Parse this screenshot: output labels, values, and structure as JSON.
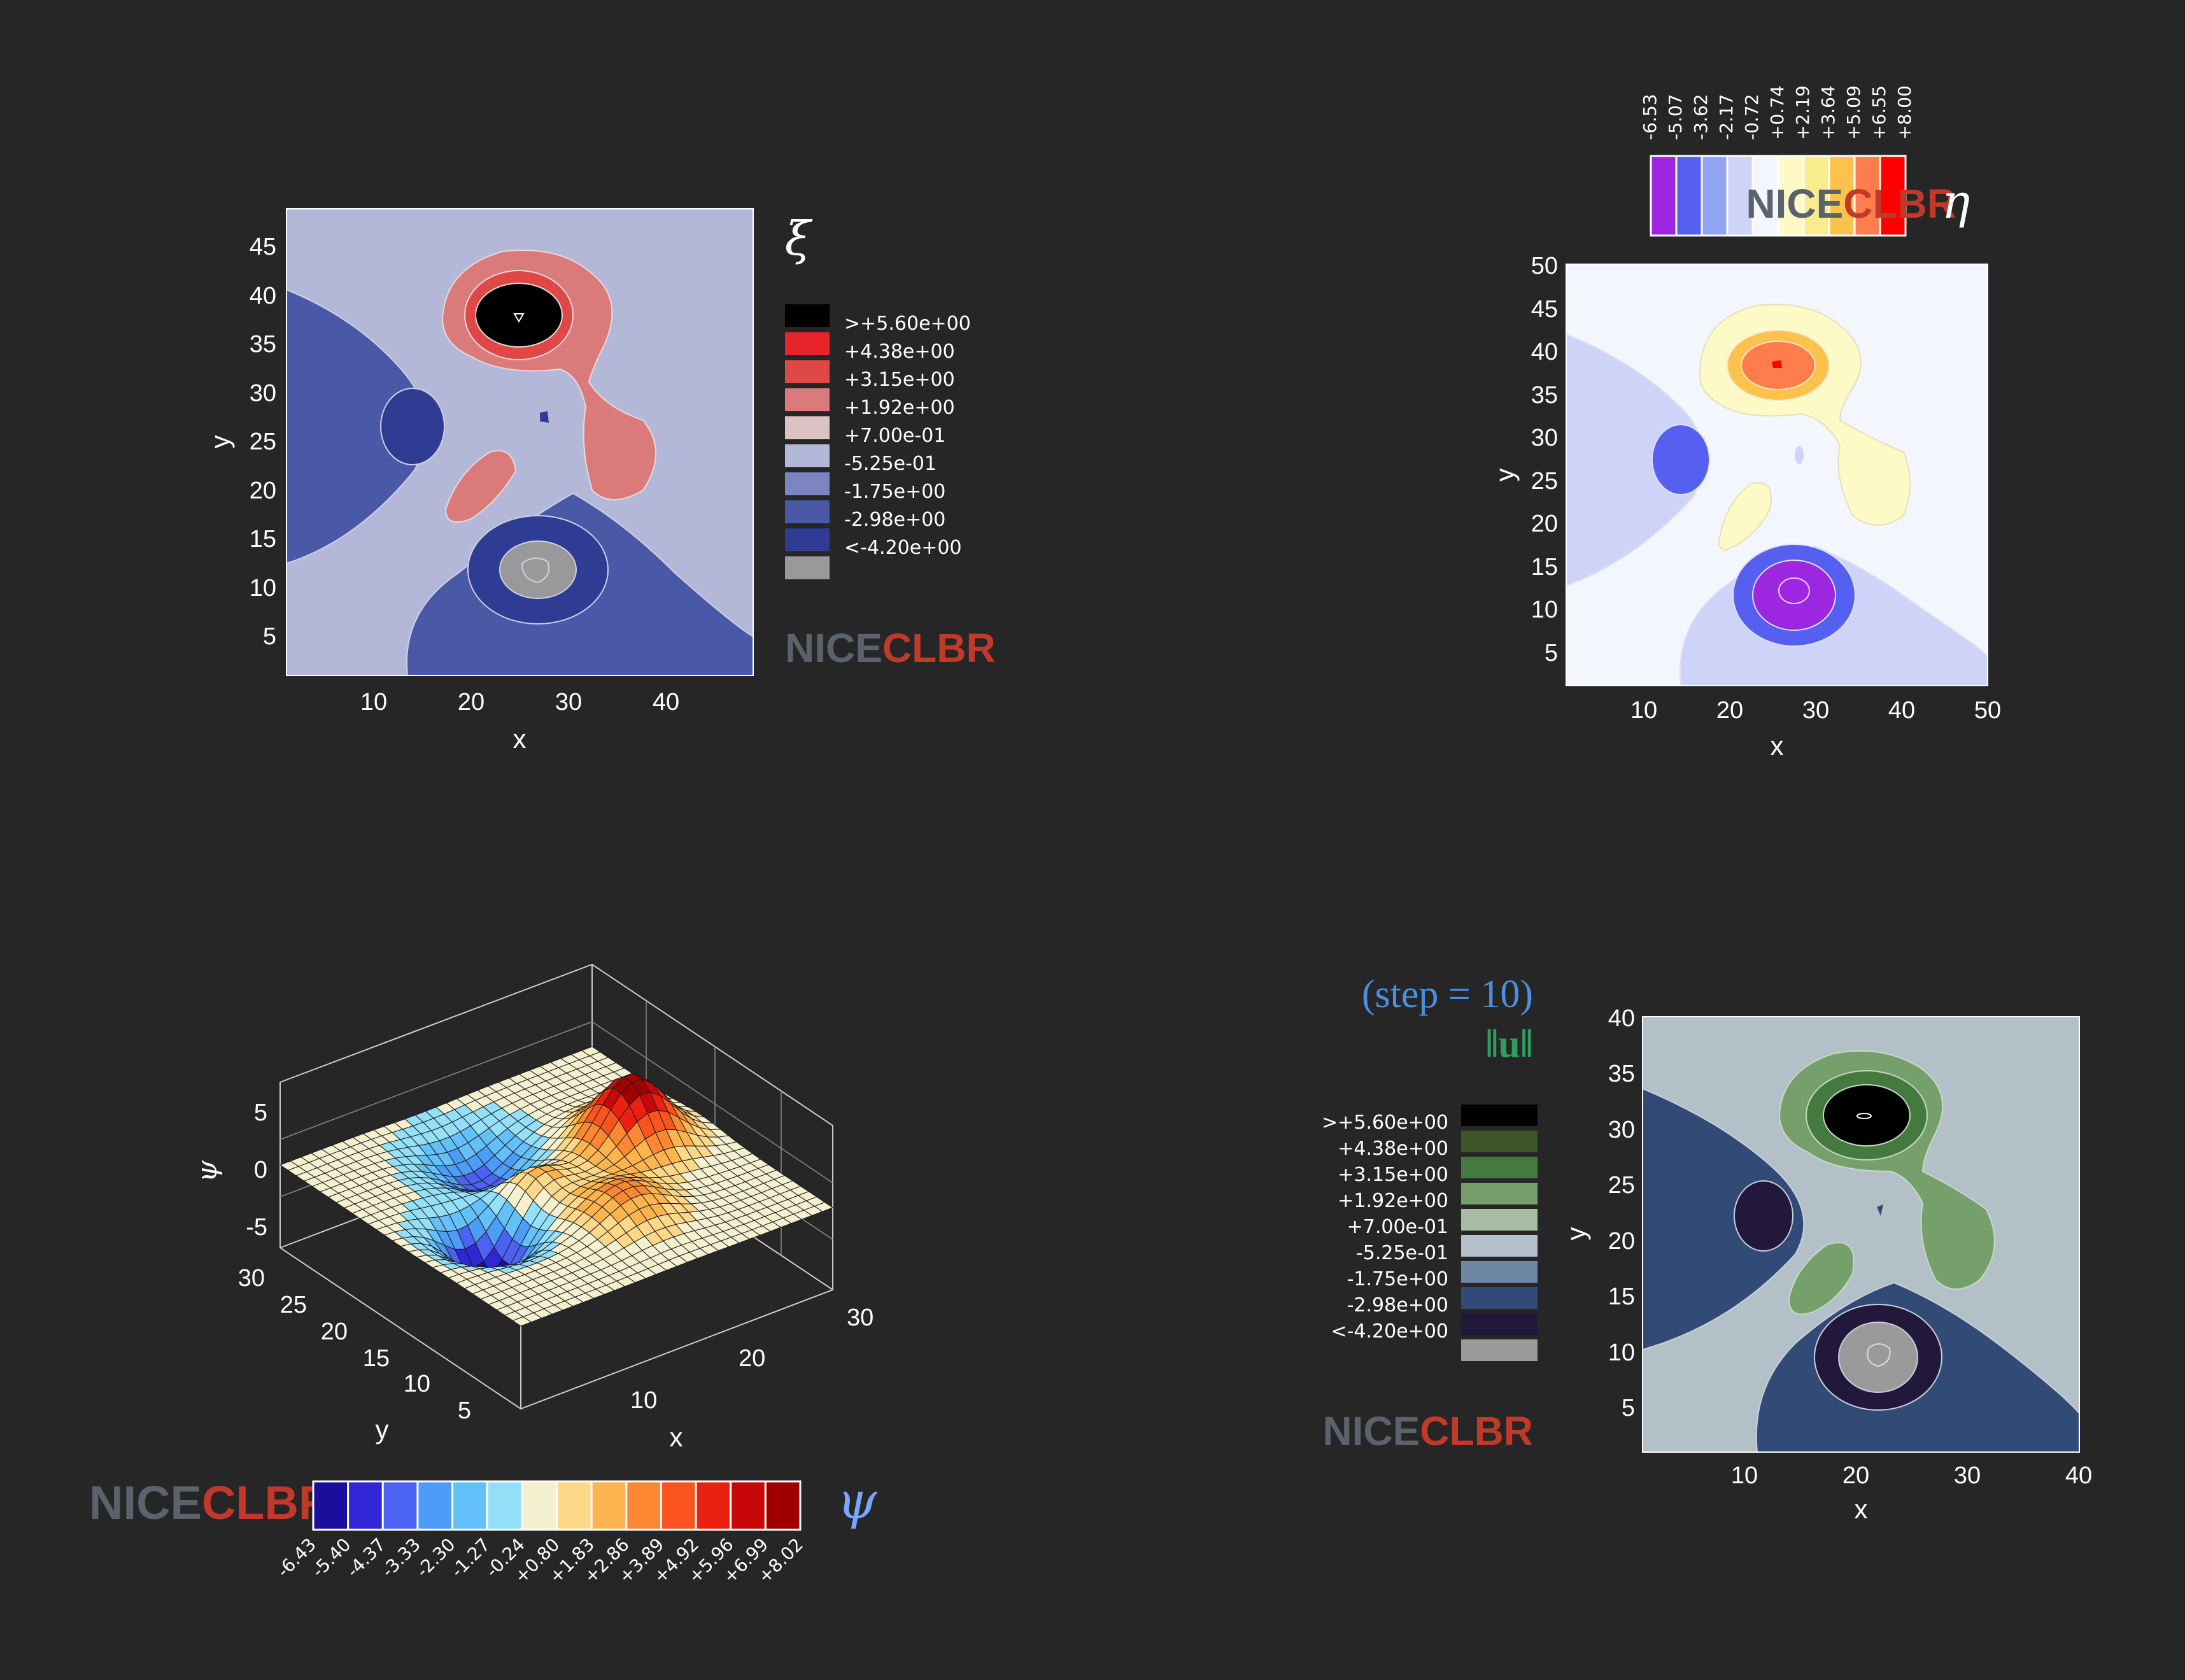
{
  "colors": {
    "background": "#262626",
    "brand_grey": "#5a626b",
    "brand_red": "#c0392b",
    "step_blue": "#4a90e2",
    "norm_green": "#2e9e5e",
    "psi_blue": "#7aa6ff"
  },
  "brand": {
    "part1": "NICE",
    "part2": "CLBR"
  },
  "panels": {
    "xi": {
      "symbol": "ξ",
      "xlabel": "x",
      "ylabel": "y",
      "xticks": [
        "10",
        "20",
        "30",
        "40"
      ],
      "yticks": [
        "5",
        "10",
        "15",
        "20",
        "25",
        "30",
        "35",
        "40",
        "45"
      ],
      "legend": [
        {
          "label": ">+5.60e+00",
          "color": "#000000"
        },
        {
          "label": "+4.38e+00",
          "color": "#e8242a"
        },
        {
          "label": "+3.15e+00",
          "color": "#e04848"
        },
        {
          "label": "+1.92e+00",
          "color": "#db7a7a"
        },
        {
          "label": "+7.00e-01",
          "color": "#dcc2c2"
        },
        {
          "label": "-5.25e-01",
          "color": "#b4b8d8"
        },
        {
          "label": "-1.75e+00",
          "color": "#7c84c2"
        },
        {
          "label": "-2.98e+00",
          "color": "#4a58a8"
        },
        {
          "label": "<-4.20e+00",
          "color": "#2e3c94"
        },
        {
          "label": "",
          "color": "#999999"
        }
      ]
    },
    "eta": {
      "symbol": "η",
      "xlabel": "x",
      "ylabel": "y",
      "xticks": [
        "10",
        "20",
        "30",
        "40",
        "50"
      ],
      "yticks": [
        "5",
        "10",
        "15",
        "20",
        "25",
        "30",
        "35",
        "40",
        "45",
        "50"
      ],
      "colorbar": {
        "ticks": [
          "-6.53",
          "-5.07",
          "-3.62",
          "-2.17",
          "-0.72",
          "+0.74",
          "+2.19",
          "+3.64",
          "+5.09",
          "+6.55",
          "+8.00"
        ],
        "colors": [
          "#9d27e0",
          "#5560f0",
          "#93a4f4",
          "#cdd4f8",
          "#f4f6fe",
          "#fefac8",
          "#f8ec8c",
          "#fcc24c",
          "#ff7c4c",
          "#ff0000"
        ]
      }
    },
    "psi": {
      "symbol": "ψ",
      "xlabel": "x",
      "ylabel": "y",
      "zlabel": "ψ",
      "xticks": [
        "10",
        "20",
        "30"
      ],
      "yticks": [
        "5",
        "10",
        "15",
        "20",
        "25",
        "30"
      ],
      "zticks": [
        "5",
        "0",
        "-5"
      ],
      "colorbar": {
        "ticks": [
          "-6.43",
          "-5.40",
          "-4.37",
          "-3.33",
          "-2.30",
          "-1.27",
          "-0.24",
          "+0.80",
          "+1.83",
          "+2.86",
          "+3.89",
          "+4.92",
          "+5.96",
          "+6.99",
          "+8.02"
        ],
        "colors": [
          "#1a0f9c",
          "#3026d8",
          "#4c62f4",
          "#4c9cf8",
          "#64c0f8",
          "#94e0f8",
          "#f4f0d0",
          "#fcd888",
          "#fcb450",
          "#fc8834",
          "#fc5420",
          "#ec2010",
          "#c80808",
          "#a00000"
        ]
      }
    },
    "norm": {
      "step_text": "(step = 10)",
      "symbol": "‖u‖",
      "xlabel": "x",
      "ylabel": "y",
      "xticks": [
        "10",
        "20",
        "30",
        "40"
      ],
      "yticks": [
        "5",
        "10",
        "15",
        "20",
        "25",
        "30",
        "35",
        "40"
      ],
      "legend": [
        {
          "label": ">+5.60e+00",
          "color": "#000000"
        },
        {
          "label": "+4.38e+00",
          "color": "#3e5429"
        },
        {
          "label": "+3.15e+00",
          "color": "#457a3e"
        },
        {
          "label": "+1.92e+00",
          "color": "#75a06c"
        },
        {
          "label": "+7.00e-01",
          "color": "#a8bca4"
        },
        {
          "label": "-5.25e-01",
          "color": "#b4c0c8"
        },
        {
          "label": "-1.75e+00",
          "color": "#6c86a4"
        },
        {
          "label": "-2.98e+00",
          "color": "#324a76"
        },
        {
          "label": "<-4.20e+00",
          "color": "#22183c"
        },
        {
          "label": "",
          "color": "#9a9a9a"
        }
      ]
    }
  },
  "chart_data": [
    {
      "type": "heatmap",
      "name": "xi",
      "xlabel": "x",
      "ylabel": "y",
      "xlim": [
        1,
        49
      ],
      "ylim": [
        1,
        49
      ],
      "levels": [
        -4.2,
        -2.98,
        -1.75,
        -0.525,
        0.7,
        1.92,
        3.15,
        4.38,
        5.6
      ],
      "features": [
        {
          "kind": "max",
          "x": 25,
          "y": 37.5,
          "value": 6.0
        },
        {
          "kind": "min",
          "x": 26.5,
          "y": 11.5,
          "value": -6.0
        },
        {
          "kind": "min",
          "x": 13,
          "y": 26,
          "value": -3.5
        },
        {
          "kind": "max",
          "x": 21,
          "y": 20,
          "value": 2.2
        },
        {
          "kind": "max",
          "x": 37,
          "y": 27,
          "value": 2.5
        }
      ]
    },
    {
      "type": "heatmap",
      "name": "eta",
      "xlabel": "x",
      "ylabel": "y",
      "xlim": [
        1,
        50
      ],
      "ylim": [
        1,
        50
      ],
      "levels": [
        -6.53,
        -5.07,
        -3.62,
        -2.17,
        -0.72,
        0.74,
        2.19,
        3.64,
        5.09,
        6.55,
        8.0
      ],
      "features": [
        {
          "kind": "max",
          "x": 26,
          "y": 38,
          "value": 7.0
        },
        {
          "kind": "min",
          "x": 27,
          "y": 12,
          "value": -6.4
        },
        {
          "kind": "min",
          "x": 13,
          "y": 26,
          "value": -4.0
        }
      ]
    },
    {
      "type": "surface",
      "name": "psi",
      "xlabel": "x",
      "ylabel": "y",
      "zlabel": "ψ",
      "xlim": [
        1,
        30
      ],
      "ylim": [
        1,
        30
      ],
      "zlim": [
        -6.43,
        8.02
      ],
      "features": [
        {
          "kind": "max",
          "x": 15,
          "y": 23,
          "value": 8.02
        },
        {
          "kind": "min",
          "x": 16,
          "y": 8,
          "value": -6.43
        }
      ]
    },
    {
      "type": "heatmap",
      "name": "norm",
      "xlabel": "x",
      "ylabel": "y",
      "xlim": [
        1,
        40
      ],
      "ylim": [
        1,
        40
      ],
      "levels": [
        -4.2,
        -2.98,
        -1.75,
        -0.525,
        0.7,
        1.92,
        3.15,
        4.38,
        5.6
      ],
      "features": [
        {
          "kind": "max",
          "x": 21,
          "y": 31,
          "value": 6.0
        },
        {
          "kind": "min",
          "x": 22,
          "y": 12,
          "value": -6.0
        },
        {
          "kind": "min",
          "x": 11,
          "y": 22,
          "value": -3.5
        }
      ]
    }
  ]
}
